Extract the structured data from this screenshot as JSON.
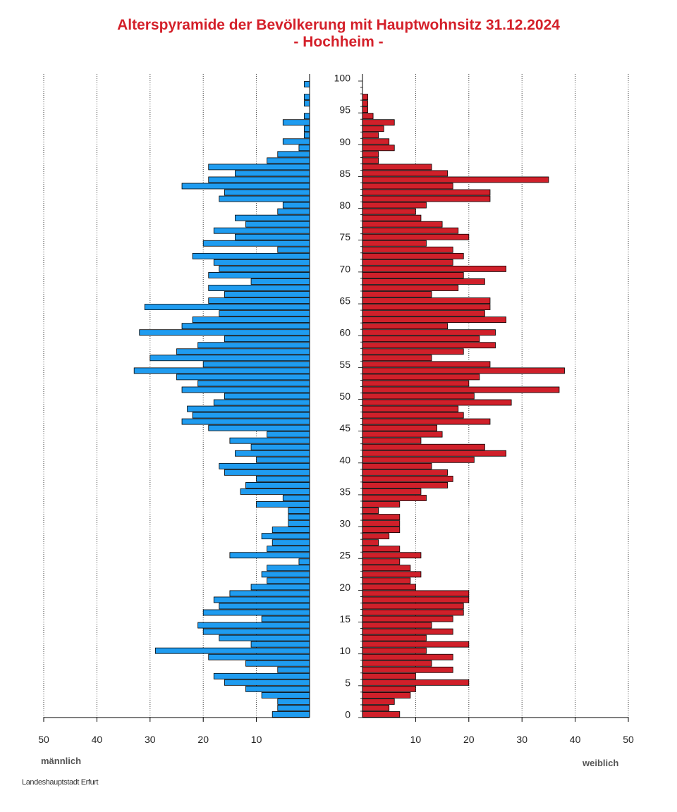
{
  "title_line1": "Alterspyramide der Bevölkerung mit Hauptwohnsitz 31.12.2024",
  "title_line2": "- Hochheim -",
  "male_label": "männlich",
  "female_label": "weiblich",
  "source": "Landeshauptstadt Erfurt",
  "colors": {
    "male": "#1f9cf0",
    "female": "#d0202a",
    "title": "#d4202a"
  },
  "chart_data": {
    "type": "bar",
    "orientation": "horizontal",
    "ages": [
      0,
      1,
      2,
      3,
      4,
      5,
      6,
      7,
      8,
      9,
      10,
      11,
      12,
      13,
      14,
      15,
      16,
      17,
      18,
      19,
      20,
      21,
      22,
      23,
      24,
      25,
      26,
      27,
      28,
      29,
      30,
      31,
      32,
      33,
      34,
      35,
      36,
      37,
      38,
      39,
      40,
      41,
      42,
      43,
      44,
      45,
      46,
      47,
      48,
      49,
      50,
      51,
      52,
      53,
      54,
      55,
      56,
      57,
      58,
      59,
      60,
      61,
      62,
      63,
      64,
      65,
      66,
      67,
      68,
      69,
      70,
      71,
      72,
      73,
      74,
      75,
      76,
      77,
      78,
      79,
      80,
      81,
      82,
      83,
      84,
      85,
      86,
      87,
      88,
      89,
      90,
      91,
      92,
      93,
      94,
      95,
      96,
      97,
      98,
      99,
      100
    ],
    "series": [
      {
        "name": "männlich",
        "values": [
          7,
          6,
          6,
          9,
          12,
          16,
          18,
          6,
          12,
          19,
          29,
          11,
          17,
          20,
          21,
          9,
          20,
          17,
          18,
          15,
          11,
          8,
          9,
          8,
          2,
          15,
          8,
          7,
          9,
          7,
          4,
          4,
          4,
          10,
          5,
          13,
          12,
          10,
          16,
          17,
          10,
          14,
          11,
          15,
          8,
          19,
          24,
          22,
          23,
          18,
          16,
          24,
          21,
          25,
          33,
          20,
          30,
          25,
          21,
          16,
          32,
          24,
          22,
          17,
          31,
          19,
          16,
          19,
          11,
          19,
          17,
          18,
          22,
          6,
          20,
          14,
          18,
          12,
          14,
          6,
          5,
          17,
          16,
          24,
          19,
          14,
          19,
          8,
          6,
          2,
          5,
          1,
          1,
          5,
          1,
          0,
          1,
          1,
          0,
          1,
          0
        ]
      },
      {
        "name": "weiblich",
        "values": [
          7,
          5,
          6,
          9,
          10,
          20,
          10,
          17,
          13,
          17,
          12,
          20,
          12,
          17,
          13,
          17,
          19,
          19,
          20,
          20,
          10,
          9,
          11,
          9,
          7,
          11,
          7,
          3,
          5,
          7,
          7,
          7,
          3,
          7,
          12,
          11,
          16,
          17,
          16,
          13,
          21,
          27,
          23,
          11,
          15,
          14,
          24,
          19,
          18,
          28,
          21,
          37,
          20,
          22,
          38,
          24,
          13,
          19,
          25,
          22,
          25,
          16,
          27,
          23,
          24,
          24,
          13,
          18,
          23,
          19,
          27,
          17,
          19,
          17,
          12,
          20,
          18,
          15,
          11,
          10,
          12,
          24,
          24,
          17,
          35,
          16,
          13,
          3,
          3,
          6,
          5,
          3,
          4,
          6,
          2,
          1,
          1,
          1,
          0,
          0,
          0
        ]
      }
    ],
    "y_ticks": [
      0,
      5,
      10,
      15,
      20,
      25,
      30,
      35,
      40,
      45,
      50,
      55,
      60,
      65,
      70,
      75,
      80,
      85,
      90,
      95,
      100
    ],
    "x_ticks_left": [
      "50",
      "40",
      "30",
      "20",
      "10"
    ],
    "x_ticks_right": [
      "10",
      "20",
      "30",
      "40",
      "50"
    ],
    "xlim": [
      0,
      50
    ],
    "grid": true
  }
}
